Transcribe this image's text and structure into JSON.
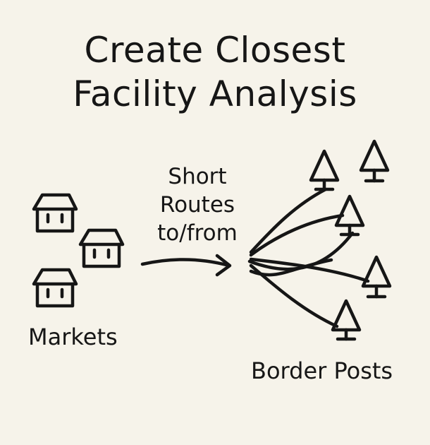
{
  "title": {
    "line1": "Create Closest",
    "line2": "Facility Analysis"
  },
  "markets": {
    "label": "Markets",
    "icon": "house-icon"
  },
  "routes": {
    "line1": "Short",
    "line2": "Routes",
    "line3": "to/from"
  },
  "border_posts": {
    "label": "Border Posts",
    "icon": "tree-icon"
  }
}
